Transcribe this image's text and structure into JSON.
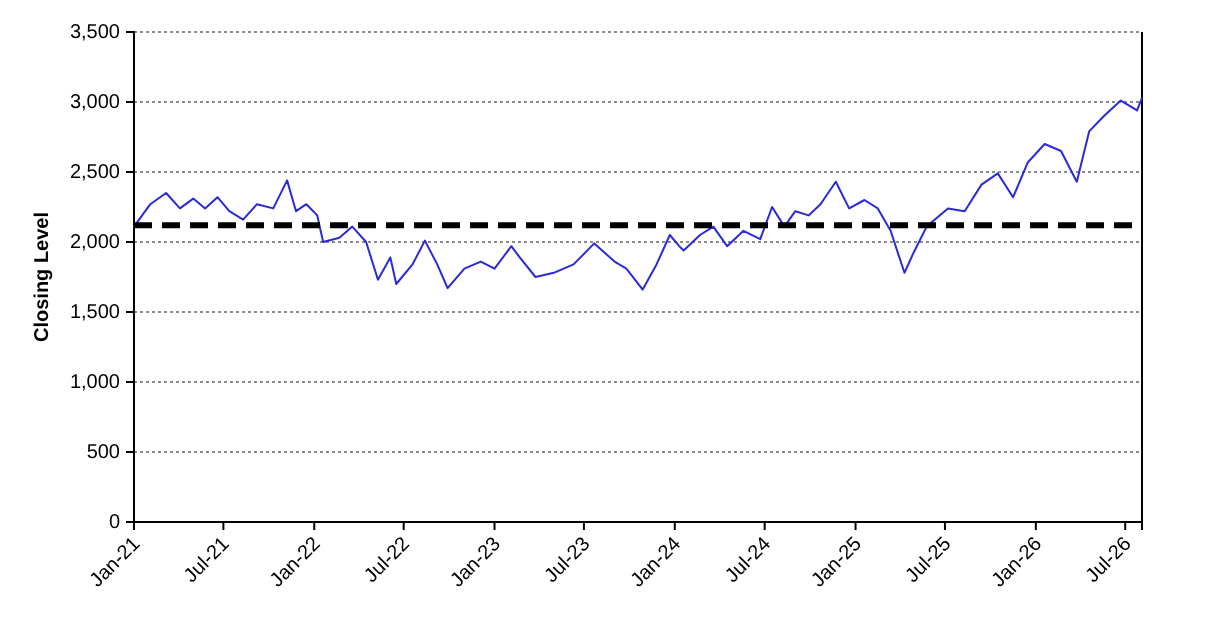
{
  "chart_data": {
    "type": "line",
    "ylabel": "Closing Level",
    "ylim": [
      0,
      3500
    ],
    "yticks": [
      0,
      500,
      {
        "value": 1000,
        "label": "1,000"
      },
      {
        "value": 1500,
        "label": "1,500"
      },
      {
        "value": 2000,
        "label": "2,000"
      },
      {
        "value": 2500,
        "label": "2,500"
      },
      {
        "value": 3000,
        "label": "3,000"
      },
      {
        "value": 3500,
        "label": "3,500"
      }
    ],
    "xlim": [
      "2021-01-01",
      "2026-08-04"
    ],
    "xticks": [
      {
        "value": "2021-01-01",
        "label": "Jan-21"
      },
      {
        "value": "2021-07-01",
        "label": "Jul-21"
      },
      {
        "value": "2022-01-01",
        "label": "Jan-22"
      },
      {
        "value": "2022-07-01",
        "label": "Jul-22"
      },
      {
        "value": "2023-01-01",
        "label": "Jan-23"
      },
      {
        "value": "2023-07-01",
        "label": "Jul-23"
      },
      {
        "value": "2024-01-01",
        "label": "Jan-24"
      },
      {
        "value": "2024-07-01",
        "label": "Jul-24"
      },
      {
        "value": "2025-01-01",
        "label": "Jan-25"
      },
      {
        "value": "2025-07-01",
        "label": "Jul-25"
      },
      {
        "value": "2026-01-01",
        "label": "Jan-26"
      },
      {
        "value": "2026-07-01",
        "label": "Jul-26"
      }
    ],
    "grid": "y",
    "marker": "none",
    "line_style": "solid",
    "ref_lines": [
      {
        "axis": "y",
        "value": 2120,
        "label": null,
        "color": "#000000",
        "line_style": "dashed"
      }
    ],
    "x": [
      "2021-01-01",
      "2021-02-03",
      "2021-02-15",
      "2021-03-07",
      "2021-04-04",
      "2021-05-01",
      "2021-05-25",
      "2021-06-19",
      "2021-07-13",
      "2021-08-10",
      "2021-09-07",
      "2021-10-10",
      "2021-11-07",
      "2021-11-25",
      "2021-12-16",
      "2022-01-07",
      "2022-01-19",
      "2022-02-21",
      "2022-03-19",
      "2022-04-16",
      "2022-05-10",
      "2022-06-04",
      "2022-06-16",
      "2022-07-19",
      "2022-08-13",
      "2022-09-07",
      "2022-09-28",
      "2022-11-01",
      "2022-12-04",
      "2023-01-01",
      "2023-02-04",
      "2023-02-21",
      "2023-03-25",
      "2023-05-01",
      "2023-06-10",
      "2023-07-22",
      "2023-09-01",
      "2023-09-25",
      "2023-10-28",
      "2023-11-25",
      "2023-12-22",
      "2024-01-10",
      "2024-01-19",
      "2024-02-21",
      "2024-03-19",
      "2024-04-16",
      "2024-05-19",
      "2024-06-22",
      "2024-07-16",
      "2024-08-10",
      "2024-09-01",
      "2024-09-28",
      "2024-10-22",
      "2024-11-22",
      "2024-12-19",
      "2025-01-19",
      "2025-02-15",
      "2025-03-13",
      "2025-04-10",
      "2025-04-28",
      "2025-05-25",
      "2025-07-07",
      "2025-08-10",
      "2025-09-13",
      "2025-10-16",
      "2025-11-16",
      "2025-12-16",
      "2026-01-19",
      "2026-02-21",
      "2026-03-25",
      "2026-04-19",
      "2026-05-19",
      "2026-06-22",
      "2026-07-25",
      "2026-08-04"
    ],
    "series": [
      {
        "color": "#2a2ad8",
        "values": [
          2110,
          2270,
          2300,
          2350,
          2240,
          2310,
          2240,
          2320,
          2220,
          2160,
          2270,
          2240,
          2440,
          2220,
          2270,
          2190,
          2000,
          2030,
          2110,
          2000,
          1730,
          1890,
          1700,
          1840,
          2010,
          1840,
          1670,
          1810,
          1860,
          1810,
          1970,
          1890,
          1750,
          1780,
          1840,
          1990,
          1860,
          1810,
          1660,
          1840,
          2050,
          1970,
          1940,
          2050,
          2110,
          1970,
          2080,
          2020,
          2250,
          2110,
          2220,
          2190,
          2270,
          2430,
          2240,
          2300,
          2240,
          2080,
          1780,
          1920,
          2110,
          2240,
          2220,
          2410,
          2490,
          2320,
          2570,
          2700,
          2650,
          2430,
          2790,
          2900,
          3010,
          2940,
          3030
        ]
      }
    ]
  }
}
